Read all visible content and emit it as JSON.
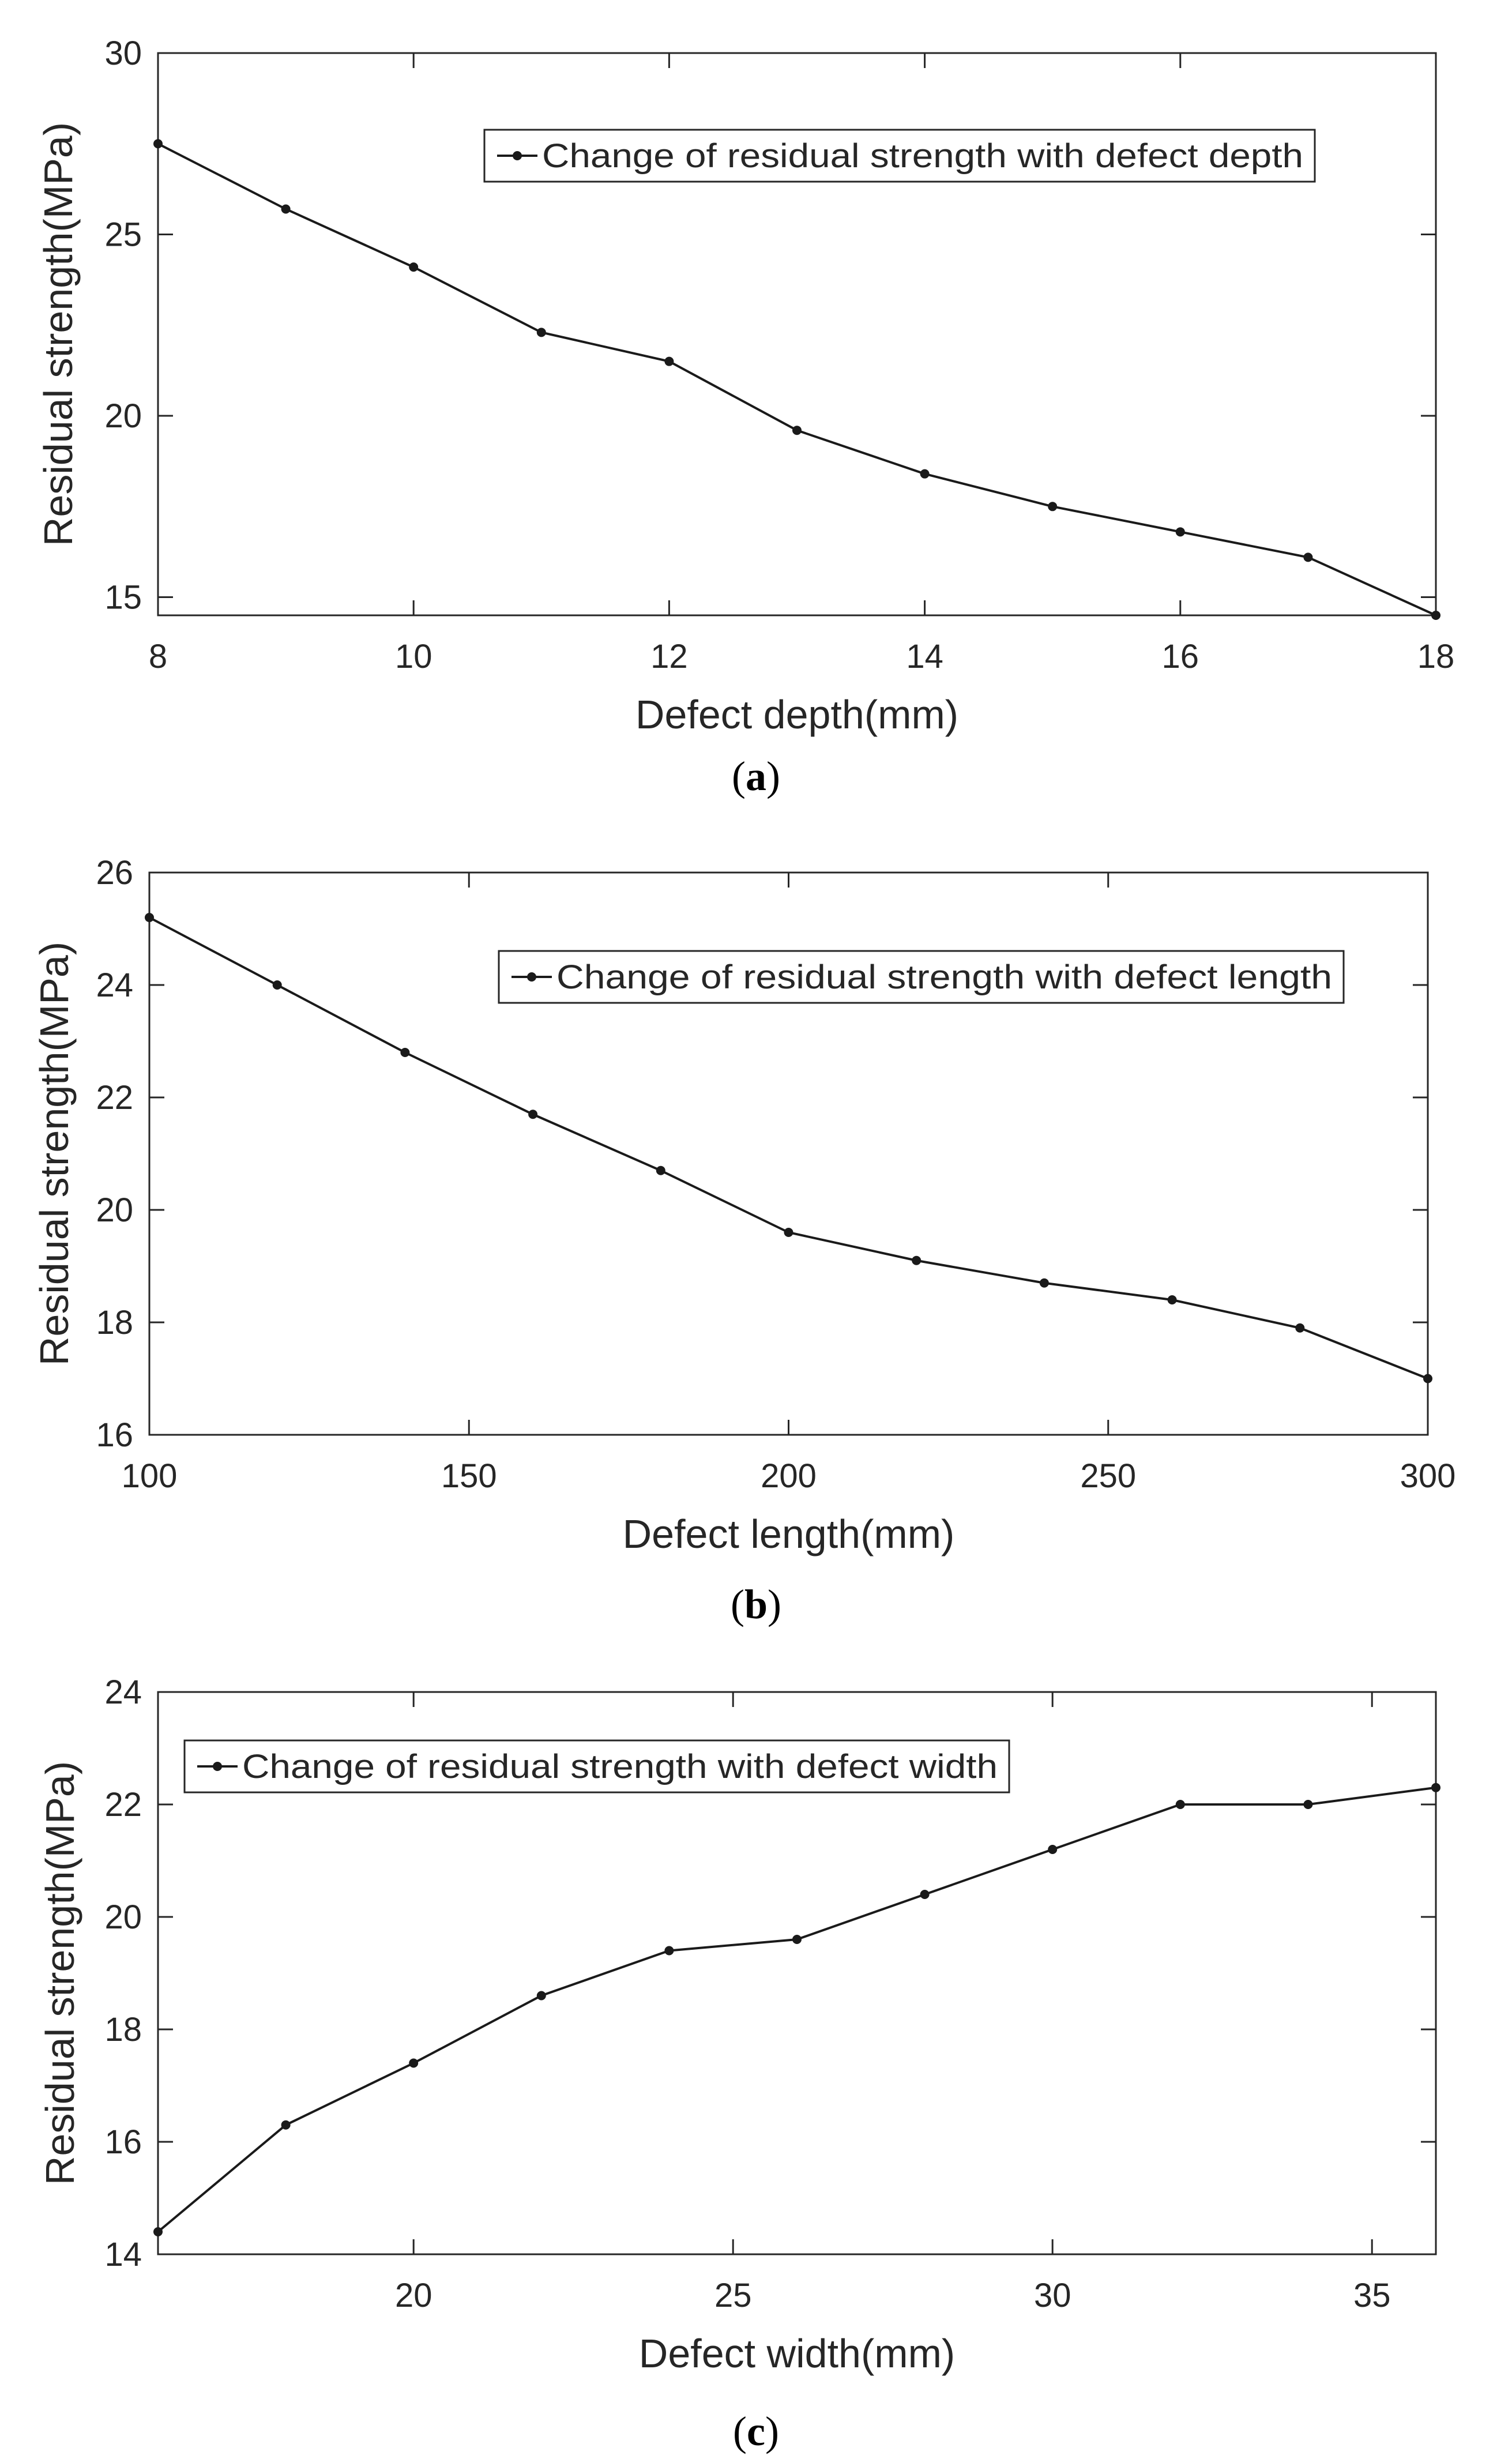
{
  "panels": [
    {
      "id": "a",
      "caption_letter": "a",
      "chart_data": {
        "type": "line",
        "title": "",
        "xlabel": "Defect depth(mm)",
        "ylabel": "Residual strength(MPa)",
        "xlim": [
          8,
          18
        ],
        "ylim": [
          14.5,
          30
        ],
        "xticks": [
          8,
          10,
          12,
          14,
          16,
          18
        ],
        "yticks": [
          15,
          20,
          25,
          30
        ],
        "legend": "top-right",
        "series": [
          {
            "name": "Change of residual strength with defect depth",
            "x": [
              8,
              9,
              10,
              11,
              12,
              13,
              14,
              15,
              16,
              17,
              18
            ],
            "values": [
              27.5,
              25.7,
              24.1,
              22.3,
              21.5,
              19.6,
              18.4,
              17.5,
              16.8,
              16.1,
              14.5
            ]
          }
        ]
      }
    },
    {
      "id": "b",
      "caption_letter": "b",
      "chart_data": {
        "type": "line",
        "title": "",
        "xlabel": "Defect length(mm)",
        "ylabel": "Residual strength(MPa)",
        "xlim": [
          100,
          300
        ],
        "ylim": [
          16,
          26
        ],
        "xticks": [
          100,
          150,
          200,
          250,
          300
        ],
        "yticks": [
          16,
          18,
          20,
          22,
          24,
          26
        ],
        "legend": "top-right",
        "series": [
          {
            "name": "Change of residual strength with defect length",
            "x": [
              100,
              120,
              140,
              160,
              180,
              200,
              220,
              240,
              260,
              280,
              300
            ],
            "values": [
              25.2,
              24.0,
              22.8,
              21.7,
              20.7,
              19.6,
              19.1,
              18.7,
              18.4,
              17.9,
              17.0
            ]
          }
        ]
      }
    },
    {
      "id": "c",
      "caption_letter": "c",
      "chart_data": {
        "type": "line",
        "title": "",
        "xlabel": "Defect width(mm)",
        "ylabel": "Residual strength(MPa)",
        "xlim": [
          16,
          36
        ],
        "ylim": [
          14,
          24
        ],
        "xticks": [
          20,
          25,
          30,
          35
        ],
        "yticks": [
          14,
          16,
          18,
          20,
          22,
          24
        ],
        "legend": "top-left",
        "series": [
          {
            "name": "Change of residual strength with defect width",
            "x": [
              16,
              18,
              20,
              22,
              24,
              26,
              28,
              30,
              32,
              34,
              36
            ],
            "values": [
              14.4,
              16.3,
              17.4,
              18.6,
              19.4,
              19.6,
              20.4,
              21.2,
              22.0,
              22.0,
              22.3
            ]
          }
        ]
      }
    }
  ]
}
